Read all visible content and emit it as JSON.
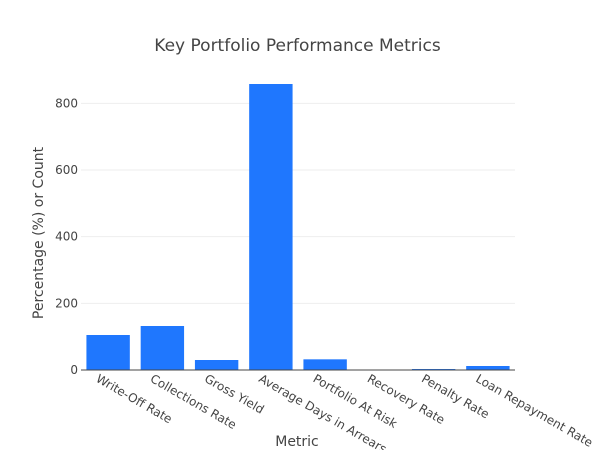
{
  "chart_data": {
    "type": "bar",
    "title": "Key Portfolio Performance Metrics",
    "xlabel": "Metric",
    "ylabel": "Percentage (%) or Count",
    "categories": [
      "Write-Off Rate",
      "Collections Rate",
      "Gross Yield",
      "Average Days in Arrears",
      "Portfolio At Risk",
      "Recovery Rate",
      "Penalty Rate",
      "Loan Repayment Rate"
    ],
    "values": [
      105,
      132,
      30,
      858,
      32,
      1,
      3,
      12
    ],
    "ylim": [
      0,
      900
    ],
    "yticks": [
      0,
      200,
      400,
      600,
      800
    ],
    "grid": true,
    "bar_color": "#1f77fe",
    "legend": false
  }
}
